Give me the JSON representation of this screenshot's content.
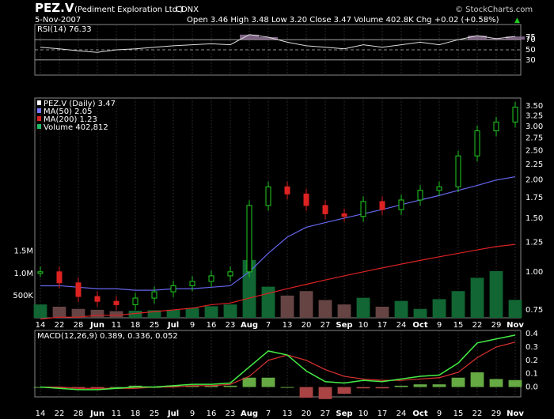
{
  "header": {
    "symbol": "PEZ.V",
    "name": "(Pediment Exploration Ltd.)",
    "exchange": "CDNX",
    "date": "5-Nov-2007",
    "ohlc_text": "Open 3.46  High 3.48  Low 3.20  Close 3.47  Volume 402.8K  Chg +0.02 (+0.58%)",
    "up_arrow": "▲",
    "watermark": "© StockCharts.com"
  },
  "rsi": {
    "label": "RSI(14) 76.33",
    "levels": [
      "70",
      "50",
      "30"
    ],
    "ticks": [
      "75",
      "70",
      "50",
      "30"
    ],
    "color": "#9a78a0"
  },
  "price": {
    "legend": [
      {
        "text": "PEZ.V (Daily) 3.47",
        "color": "#ffffff"
      },
      {
        "text": "MA(50) 2.05",
        "color": "#7777ff"
      },
      {
        "text": "MA(200) 1.23",
        "color": "#dd2222"
      },
      {
        "text": "Volume 402,812",
        "color": "#22bb66"
      }
    ],
    "price_ticks": [
      "3.50",
      "3.25",
      "3.00",
      "2.75",
      "2.50",
      "2.25",
      "2.00",
      "1.75",
      "1.50",
      "1.25",
      "1.00",
      "0.75"
    ],
    "vol_ticks": [
      "1.5M",
      "1.0M",
      "500K"
    ]
  },
  "macd": {
    "label": "MACD(12,26,9) 0.389, 0.336, 0.052",
    "ticks": [
      "0.4",
      "0.3",
      "0.2",
      "0.1",
      "0.0"
    ]
  },
  "x_axis_labels": [
    "14",
    "22",
    "28",
    "Jun",
    "11",
    "18",
    "25",
    "Jul",
    "9",
    "16",
    "23",
    "Aug",
    "7",
    "13",
    "20",
    "27",
    "Sep",
    "10",
    "17",
    "24",
    "Oct",
    "9",
    "15",
    "22",
    "29",
    "Nov"
  ],
  "colors": {
    "up": "#22cc22",
    "down": "#dd2222",
    "ma50": "#6666ee",
    "ma200": "#dd2222",
    "macd": "#44ee44",
    "signal": "#dd3333",
    "hist": "#66aa44",
    "grid": "#444444"
  },
  "chart_data": {
    "type": "candlestick",
    "title": "PEZ.V (Pediment Exploration Ltd.) CDNX",
    "dates": [
      "14-May",
      "22-May",
      "28-May",
      "Jun",
      "11-Jun",
      "18-Jun",
      "25-Jun",
      "Jul",
      "9-Jul",
      "16-Jul",
      "23-Jul",
      "Aug",
      "7-Aug",
      "13-Aug",
      "20-Aug",
      "27-Aug",
      "Sep",
      "10-Sep",
      "17-Sep",
      "24-Sep",
      "Oct",
      "9-Oct",
      "15-Oct",
      "22-Oct",
      "29-Oct",
      "Nov"
    ],
    "close": [
      1.0,
      0.92,
      0.83,
      0.8,
      0.78,
      0.82,
      0.86,
      0.9,
      0.93,
      0.97,
      1.0,
      1.65,
      1.9,
      1.8,
      1.65,
      1.55,
      1.52,
      1.7,
      1.6,
      1.72,
      1.85,
      1.9,
      2.4,
      2.9,
      3.1,
      3.47
    ],
    "ma50": [
      0.9,
      0.9,
      0.89,
      0.88,
      0.88,
      0.87,
      0.87,
      0.88,
      0.88,
      0.89,
      0.9,
      1.0,
      1.15,
      1.3,
      1.4,
      1.45,
      1.5,
      1.55,
      1.6,
      1.66,
      1.72,
      1.78,
      1.85,
      1.92,
      2.0,
      2.05
    ],
    "ma200": [
      0.7,
      0.71,
      0.71,
      0.72,
      0.72,
      0.73,
      0.74,
      0.75,
      0.76,
      0.78,
      0.79,
      0.82,
      0.85,
      0.88,
      0.91,
      0.94,
      0.97,
      1.0,
      1.03,
      1.06,
      1.09,
      1.12,
      1.15,
      1.18,
      1.21,
      1.23
    ],
    "volume": [
      300000,
      250000,
      200000,
      180000,
      150000,
      160000,
      170000,
      180000,
      220000,
      260000,
      300000,
      1300000,
      700000,
      500000,
      600000,
      400000,
      300000,
      450000,
      250000,
      380000,
      200000,
      420000,
      600000,
      900000,
      1050000,
      402812
    ],
    "rsi": [
      55,
      52,
      48,
      45,
      50,
      52,
      55,
      58,
      60,
      62,
      60,
      80,
      75,
      65,
      58,
      55,
      52,
      60,
      55,
      60,
      65,
      60,
      70,
      78,
      72,
      76.33
    ],
    "macd": [
      0.0,
      -0.01,
      -0.02,
      -0.02,
      -0.01,
      0.0,
      0.0,
      0.01,
      0.02,
      0.02,
      0.03,
      0.15,
      0.27,
      0.24,
      0.12,
      0.04,
      0.03,
      0.05,
      0.04,
      0.06,
      0.08,
      0.09,
      0.18,
      0.33,
      0.36,
      0.389
    ],
    "signal": [
      0.0,
      0.0,
      -0.01,
      -0.01,
      -0.01,
      -0.01,
      0.0,
      0.0,
      0.01,
      0.01,
      0.02,
      0.08,
      0.2,
      0.24,
      0.2,
      0.13,
      0.08,
      0.06,
      0.05,
      0.05,
      0.06,
      0.07,
      0.11,
      0.22,
      0.3,
      0.336
    ],
    "histogram": [
      0.0,
      -0.01,
      -0.01,
      -0.01,
      0.0,
      0.01,
      0.0,
      0.01,
      0.01,
      0.01,
      0.01,
      0.07,
      0.07,
      0.0,
      -0.08,
      -0.09,
      -0.05,
      -0.01,
      -0.01,
      0.01,
      0.02,
      0.02,
      0.07,
      0.11,
      0.06,
      0.052
    ],
    "ylim_price": [
      0.75,
      3.5
    ],
    "ylim_rsi": [
      0,
      100
    ],
    "ylim_macd": [
      -0.05,
      0.4
    ]
  }
}
